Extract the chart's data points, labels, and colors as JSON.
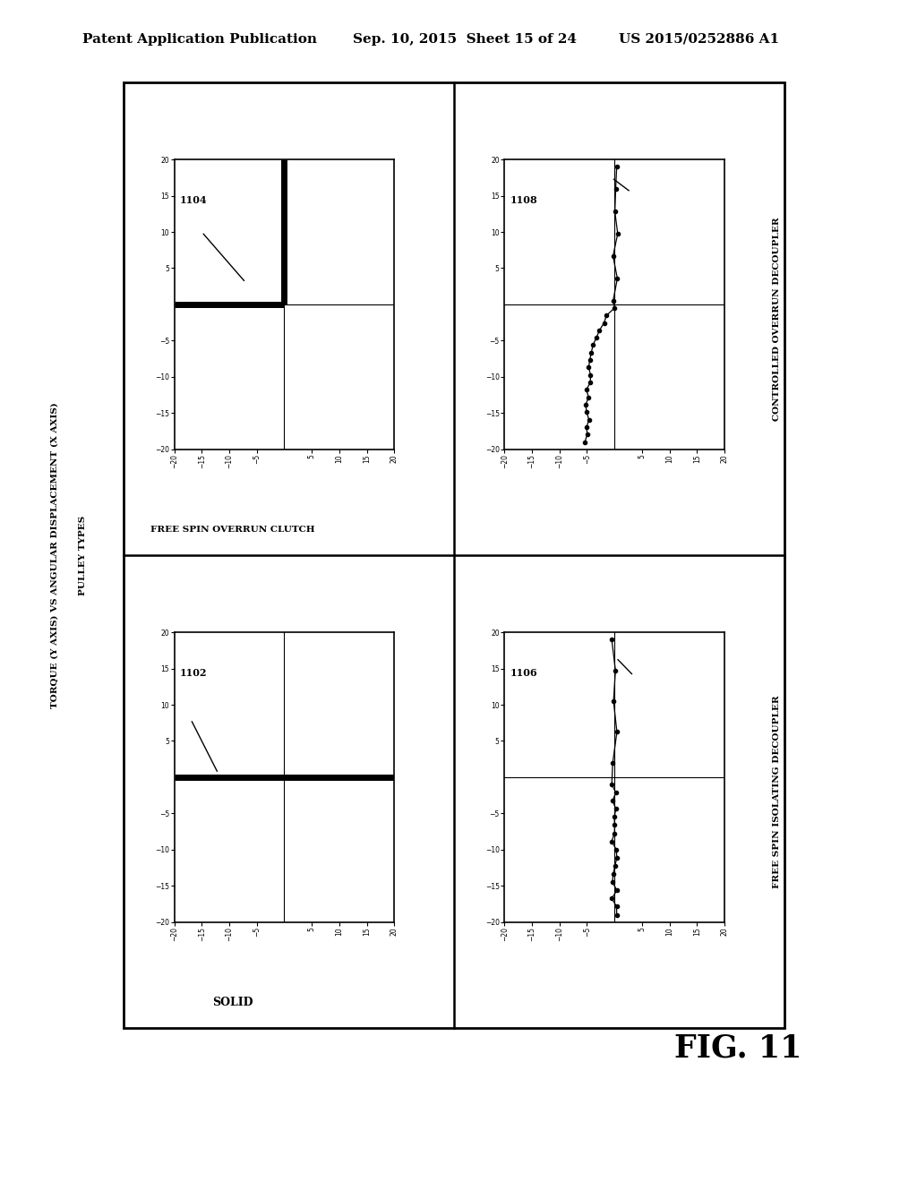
{
  "header_left": "Patent Application Publication",
  "header_mid": "Sep. 10, 2015  Sheet 15 of 24",
  "header_right": "US 2015/0252886 A1",
  "fig_label": "FIG. 11",
  "title_line1": "PULLEY TYPES",
  "title_line2": "TORQUE (Y AXIS) VS ANGULAR DISPLACEMENT (X AXIS)",
  "label_tl": "1104",
  "label_tr": "1108",
  "label_bl": "1102",
  "label_br": "1106",
  "name_tl": "FREE SPIN OVERRUN CLUTCH",
  "name_tr": "CONTROLLED OVERRUN DECOUPLER",
  "name_bl": "SOLID",
  "name_br": "FREE SPIN ISOLATING DECOUPLER",
  "OL": 0.135,
  "OB": 0.13,
  "OW": 0.72,
  "OH": 0.8
}
